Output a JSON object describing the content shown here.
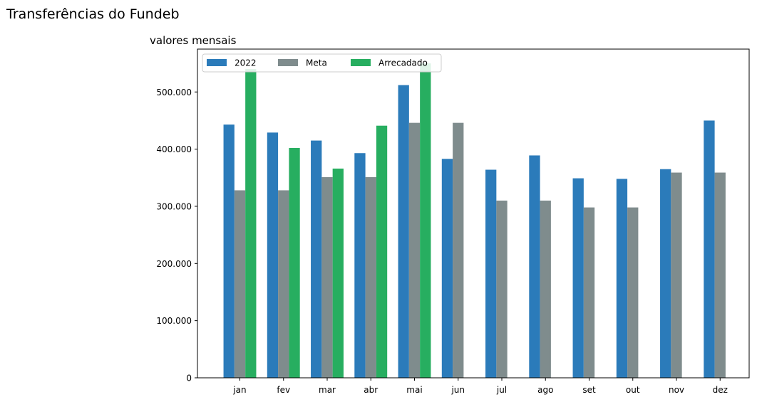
{
  "chart_data": {
    "type": "bar",
    "title": "Transferências do Fundeb",
    "subtitle": "valores mensais",
    "xlabel": "",
    "ylabel": "",
    "ylim": [
      0,
      575000
    ],
    "yticks": [
      0,
      100000,
      200000,
      300000,
      400000,
      500000
    ],
    "ytick_labels": [
      "0",
      "100.000",
      "200.000",
      "300.000",
      "400.000",
      "500.000"
    ],
    "categories": [
      "jan",
      "fev",
      "mar",
      "abr",
      "mai",
      "jun",
      "jul",
      "ago",
      "set",
      "out",
      "nov",
      "dez"
    ],
    "series": [
      {
        "name": "2022",
        "color": "#2b7bba",
        "values": [
          443000,
          429000,
          415000,
          393000,
          512000,
          383000,
          364000,
          389000,
          349000,
          348000,
          365000,
          450000
        ]
      },
      {
        "name": "Meta",
        "color": "#7f8c8d",
        "values": [
          328000,
          328000,
          351000,
          351000,
          446000,
          446000,
          310000,
          310000,
          298000,
          298000,
          359000,
          359000
        ]
      },
      {
        "name": "Arrecadado",
        "color": "#27ae60",
        "values": [
          540000,
          402000,
          366000,
          441000,
          550000,
          null,
          null,
          null,
          null,
          null,
          null,
          null
        ]
      }
    ],
    "grid": false,
    "legend_position": "top-left"
  }
}
